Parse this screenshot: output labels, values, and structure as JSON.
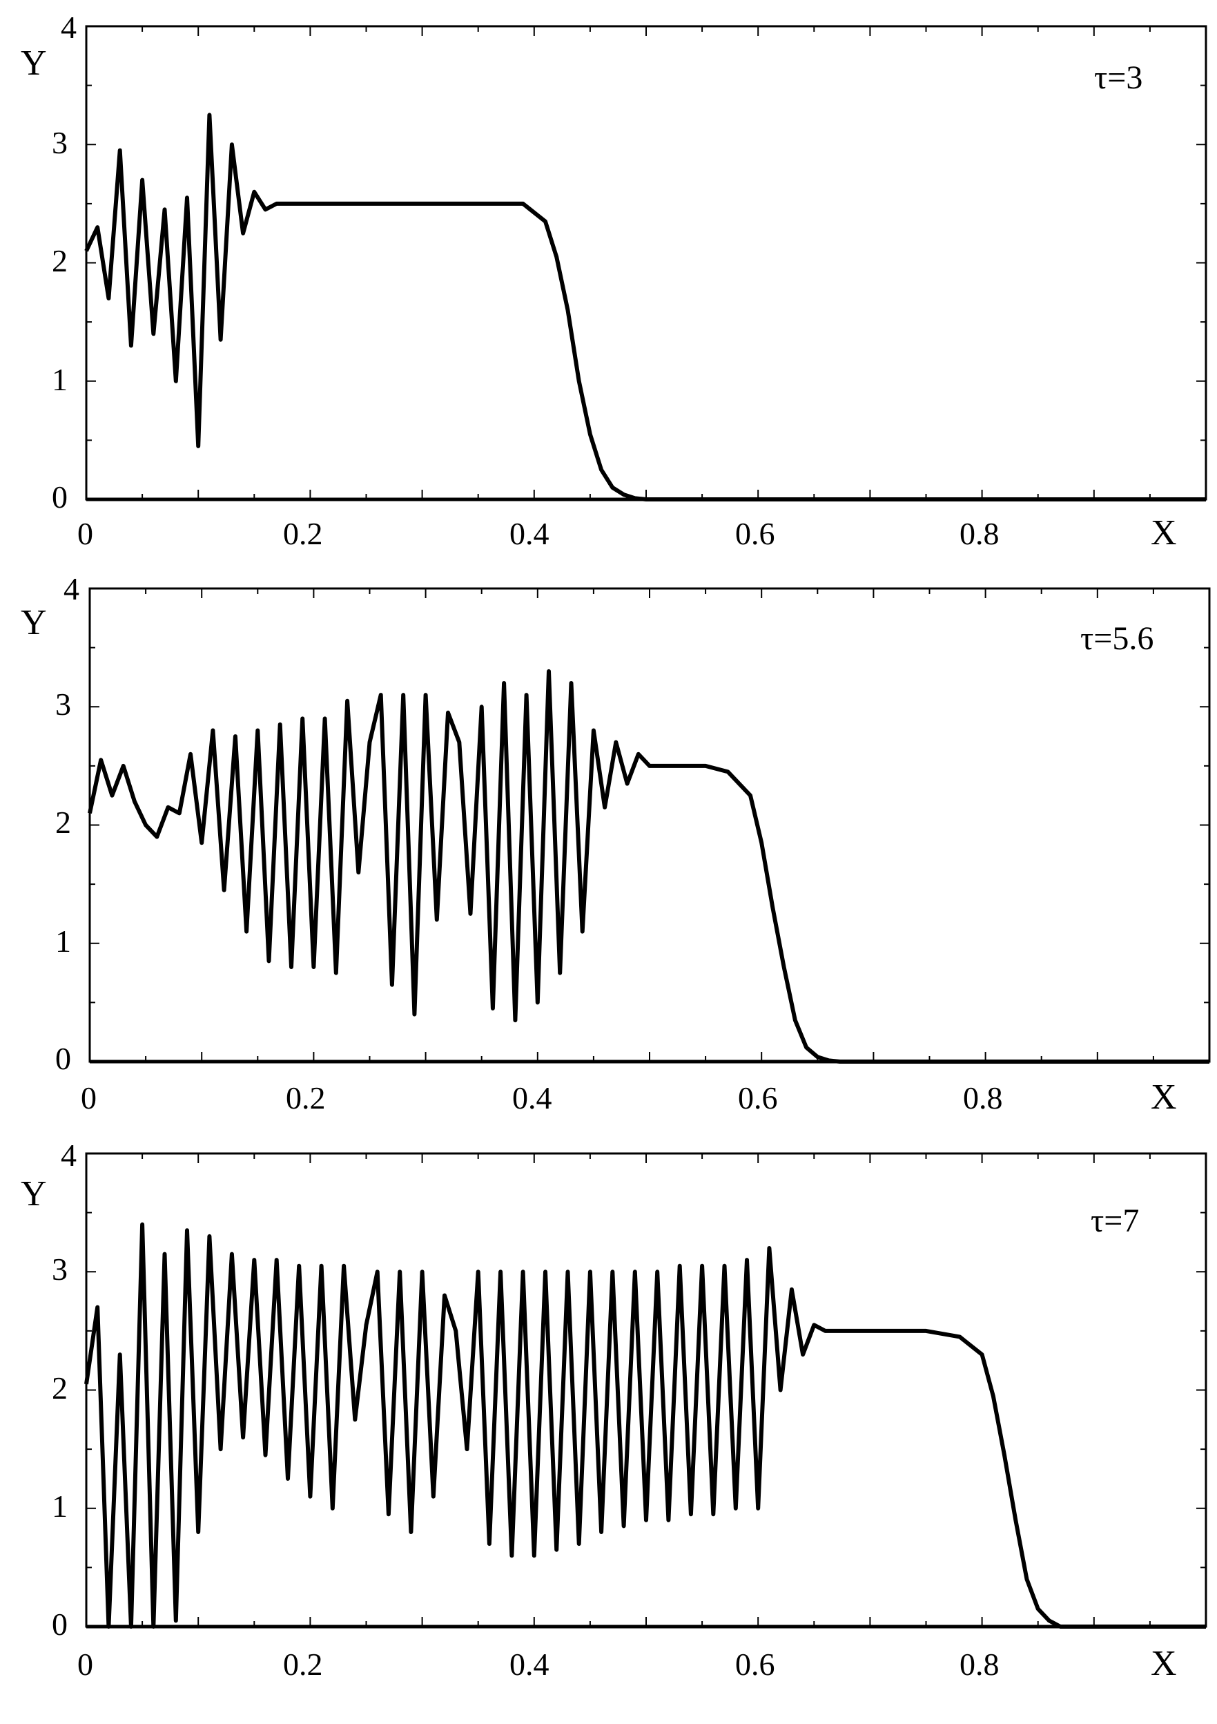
{
  "chart_data": [
    {
      "type": "line",
      "xlabel": "X",
      "ylabel": "Y",
      "annotation": "τ=3",
      "xlim": [
        0,
        1
      ],
      "ylim": [
        0,
        4
      ],
      "xticks": [
        "0",
        "0.2",
        "0.4",
        "0.6",
        "0.8"
      ],
      "yticks": [
        "0",
        "1",
        "2",
        "3",
        "4"
      ],
      "legend": "none",
      "grid": false,
      "series": [
        {
          "x": [
            0,
            0.01,
            0.02,
            0.03,
            0.04,
            0.05,
            0.06,
            0.07,
            0.08,
            0.09,
            0.1,
            0.11,
            0.12,
            0.13,
            0.14,
            0.15,
            0.16,
            0.17,
            0.2,
            0.25,
            0.3,
            0.35,
            0.39,
            0.41,
            0.42,
            0.43,
            0.44,
            0.45,
            0.46,
            0.47,
            0.48,
            0.49,
            0.5,
            0.51,
            1.0
          ],
          "y": [
            2.1,
            2.3,
            1.7,
            2.95,
            1.3,
            2.7,
            1.4,
            2.45,
            1.0,
            2.55,
            0.45,
            3.25,
            1.35,
            3.0,
            2.25,
            2.6,
            2.45,
            2.5,
            2.5,
            2.5,
            2.5,
            2.5,
            2.5,
            2.35,
            2.05,
            1.6,
            1.0,
            0.55,
            0.25,
            0.1,
            0.04,
            0.01,
            0.0,
            0.0,
            0.0
          ]
        }
      ]
    },
    {
      "type": "line",
      "xlabel": "X",
      "ylabel": "Y",
      "annotation": "τ=5.6",
      "xlim": [
        0,
        1
      ],
      "ylim": [
        0,
        4
      ],
      "xticks": [
        "0",
        "0.2",
        "0.4",
        "0.6",
        "0.8"
      ],
      "yticks": [
        "0",
        "1",
        "2",
        "3",
        "4"
      ],
      "legend": "none",
      "grid": false,
      "series": [
        {
          "x": [
            0,
            0.01,
            0.02,
            0.03,
            0.04,
            0.05,
            0.06,
            0.07,
            0.08,
            0.09,
            0.1,
            0.11,
            0.12,
            0.13,
            0.14,
            0.15,
            0.16,
            0.17,
            0.18,
            0.19,
            0.2,
            0.21,
            0.22,
            0.23,
            0.24,
            0.25,
            0.26,
            0.27,
            0.28,
            0.29,
            0.3,
            0.31,
            0.32,
            0.33,
            0.34,
            0.35,
            0.36,
            0.37,
            0.38,
            0.39,
            0.4,
            0.41,
            0.42,
            0.43,
            0.44,
            0.45,
            0.46,
            0.47,
            0.48,
            0.49,
            0.5,
            0.55,
            0.57,
            0.59,
            0.6,
            0.61,
            0.62,
            0.63,
            0.64,
            0.65,
            0.66,
            0.67,
            1.0
          ],
          "y": [
            2.1,
            2.55,
            2.25,
            2.5,
            2.2,
            2.0,
            1.9,
            2.15,
            2.1,
            2.6,
            1.85,
            2.8,
            1.45,
            2.75,
            1.1,
            2.8,
            0.85,
            2.85,
            0.8,
            2.9,
            0.8,
            2.9,
            0.75,
            3.05,
            1.6,
            2.7,
            3.1,
            0.65,
            3.1,
            0.4,
            3.1,
            1.2,
            2.95,
            2.7,
            1.25,
            3.0,
            0.45,
            3.2,
            0.35,
            3.1,
            0.5,
            3.3,
            0.75,
            3.2,
            1.1,
            2.8,
            2.15,
            2.7,
            2.35,
            2.6,
            2.5,
            2.5,
            2.45,
            2.25,
            1.85,
            1.3,
            0.8,
            0.35,
            0.12,
            0.04,
            0.01,
            0.0,
            0.0
          ]
        }
      ]
    },
    {
      "type": "line",
      "xlabel": "X",
      "ylabel": "Y",
      "annotation": "τ=7",
      "xlim": [
        0,
        1
      ],
      "ylim": [
        0,
        4
      ],
      "xticks": [
        "0",
        "0.2",
        "0.4",
        "0.6",
        "0.8"
      ],
      "yticks": [
        "0",
        "1",
        "2",
        "3",
        "4"
      ],
      "legend": "none",
      "grid": false,
      "series": [
        {
          "x": [
            0,
            0.01,
            0.02,
            0.03,
            0.04,
            0.05,
            0.06,
            0.07,
            0.08,
            0.09,
            0.1,
            0.11,
            0.12,
            0.13,
            0.14,
            0.15,
            0.16,
            0.17,
            0.18,
            0.19,
            0.2,
            0.21,
            0.22,
            0.23,
            0.24,
            0.25,
            0.26,
            0.27,
            0.28,
            0.29,
            0.3,
            0.31,
            0.32,
            0.33,
            0.34,
            0.35,
            0.36,
            0.37,
            0.38,
            0.39,
            0.4,
            0.41,
            0.42,
            0.43,
            0.44,
            0.45,
            0.46,
            0.47,
            0.48,
            0.49,
            0.5,
            0.51,
            0.52,
            0.53,
            0.54,
            0.55,
            0.56,
            0.57,
            0.58,
            0.59,
            0.6,
            0.61,
            0.62,
            0.63,
            0.64,
            0.65,
            0.66,
            0.7,
            0.75,
            0.78,
            0.8,
            0.81,
            0.82,
            0.83,
            0.84,
            0.85,
            0.86,
            0.87,
            1.0
          ],
          "y": [
            2.05,
            2.7,
            0.0,
            2.3,
            0.0,
            3.4,
            0.0,
            3.15,
            0.05,
            3.35,
            0.8,
            3.3,
            1.5,
            3.15,
            1.6,
            3.1,
            1.45,
            3.1,
            1.25,
            3.05,
            1.1,
            3.05,
            1.0,
            3.05,
            1.75,
            2.55,
            3.0,
            0.95,
            3.0,
            0.8,
            3.0,
            1.1,
            2.8,
            2.5,
            1.5,
            3.0,
            0.7,
            3.0,
            0.6,
            3.0,
            0.6,
            3.0,
            0.65,
            3.0,
            0.7,
            3.0,
            0.8,
            3.0,
            0.85,
            3.0,
            0.9,
            3.0,
            0.9,
            3.05,
            0.95,
            3.05,
            0.95,
            3.05,
            1.0,
            3.1,
            1.0,
            3.2,
            2.0,
            2.85,
            2.3,
            2.55,
            2.5,
            2.5,
            2.5,
            2.45,
            2.3,
            1.95,
            1.45,
            0.9,
            0.4,
            0.15,
            0.05,
            0.0,
            0.0
          ]
        }
      ]
    }
  ]
}
